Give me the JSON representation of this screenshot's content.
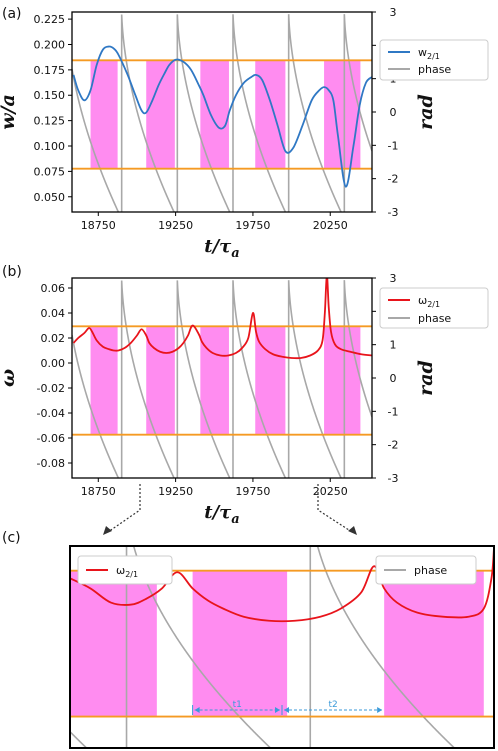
{
  "colors": {
    "w_line": "#2f78c4",
    "omega_line": "#e8141b",
    "phase_line": "#a8a8a8",
    "threshold": "#f59a23",
    "band": "#ff8cf0",
    "arrow_dotted": "#333333",
    "interval_arrow": "#3a9ad9"
  },
  "chart_data": [
    {
      "panel": "(a)",
      "type": "line",
      "xlabel": "t/τa",
      "xlabel_main": "t/τ",
      "xlabel_sub": "a",
      "ylabel": "w/a",
      "y2label": "rad",
      "xlim": [
        18580,
        20520
      ],
      "ylim": [
        0.035,
        0.232
      ],
      "y2lim": [
        -3,
        3
      ],
      "xticks": [
        "18750",
        "19250",
        "19750",
        "20250"
      ],
      "xtick_values": [
        18750,
        19250,
        19750,
        20250
      ],
      "yticks": [
        "0.050",
        "0.075",
        "0.100",
        "0.125",
        "0.150",
        "0.175",
        "0.200",
        "0.225"
      ],
      "ytick_values": [
        0.05,
        0.075,
        0.1,
        0.125,
        0.15,
        0.175,
        0.2,
        0.225
      ],
      "y2ticks": [
        "-3",
        "-2",
        "-1",
        "0",
        "1",
        "2",
        "3"
      ],
      "y2tick_values": [
        -3,
        -2,
        -1,
        0,
        1,
        2,
        3
      ],
      "thresholds_rad": [
        1.55,
        -1.7
      ],
      "bands": [
        [
          18700,
          18875
        ],
        [
          19060,
          19245
        ],
        [
          19410,
          19595
        ],
        [
          19765,
          19960
        ],
        [
          20210,
          20445
        ]
      ],
      "legend": [
        {
          "label": "w",
          "sub": "2/1",
          "color_key": "w_line"
        },
        {
          "label": "phase",
          "sub": "",
          "color_key": "phase_line"
        }
      ],
      "series": [
        {
          "name": "w2/1",
          "axis": "left",
          "x": [
            18590,
            18620,
            18660,
            18700,
            18740,
            18780,
            18820,
            18850,
            18880,
            18940,
            18990,
            19030,
            19060,
            19100,
            19140,
            19180,
            19210,
            19250,
            19300,
            19350,
            19400,
            19430,
            19480,
            19530,
            19570,
            19600,
            19640,
            19690,
            19740,
            19770,
            19810,
            19860,
            19910,
            19960,
            20010,
            20070,
            20130,
            20180,
            20210,
            20240,
            20270,
            20300,
            20350,
            20400,
            20440,
            20480,
            20520
          ],
          "y": [
            0.17,
            0.155,
            0.145,
            0.155,
            0.18,
            0.195,
            0.198,
            0.196,
            0.19,
            0.17,
            0.15,
            0.135,
            0.133,
            0.145,
            0.16,
            0.172,
            0.18,
            0.185,
            0.183,
            0.175,
            0.16,
            0.15,
            0.13,
            0.118,
            0.12,
            0.135,
            0.15,
            0.162,
            0.168,
            0.17,
            0.165,
            0.145,
            0.12,
            0.095,
            0.098,
            0.12,
            0.145,
            0.155,
            0.158,
            0.155,
            0.145,
            0.11,
            0.06,
            0.1,
            0.14,
            0.162,
            0.168
          ]
        }
      ]
    },
    {
      "panel": "(b)",
      "type": "line",
      "xlabel": "t/τa",
      "xlabel_main": "t/τ",
      "xlabel_sub": "a",
      "ylabel": "ω",
      "y2label": "rad",
      "xlim": [
        18580,
        20520
      ],
      "ylim": [
        -0.092,
        0.068
      ],
      "y2lim": [
        -3,
        3
      ],
      "xticks": [
        "18750",
        "19250",
        "19750",
        "20250"
      ],
      "xtick_values": [
        18750,
        19250,
        19750,
        20250
      ],
      "yticks": [
        "-0.08",
        "-0.06",
        "-0.04",
        "-0.02",
        "0.00",
        "0.02",
        "0.04",
        "0.06"
      ],
      "ytick_values": [
        -0.08,
        -0.06,
        -0.04,
        -0.02,
        0.0,
        0.02,
        0.04,
        0.06
      ],
      "y2ticks": [
        "-3",
        "-2",
        "-1",
        "0",
        "1",
        "2",
        "3"
      ],
      "y2tick_values": [
        -3,
        -2,
        -1,
        0,
        1,
        2,
        3
      ],
      "thresholds_rad": [
        1.55,
        -1.7
      ],
      "bands": [
        [
          18700,
          18875
        ],
        [
          19060,
          19245
        ],
        [
          19410,
          19595
        ],
        [
          19765,
          19960
        ],
        [
          20210,
          20445
        ]
      ],
      "legend": [
        {
          "label": "ω",
          "sub": "2/1",
          "color_key": "omega_line"
        },
        {
          "label": "phase",
          "sub": "",
          "color_key": "phase_line"
        }
      ],
      "series": [
        {
          "name": "ω2/1",
          "axis": "left",
          "x": [
            18590,
            18620,
            18660,
            18690,
            18710,
            18740,
            18780,
            18820,
            18850,
            18880,
            18920,
            18960,
            19000,
            19030,
            19060,
            19080,
            19110,
            19150,
            19190,
            19230,
            19270,
            19300,
            19330,
            19360,
            19400,
            19420,
            19450,
            19490,
            19540,
            19590,
            19640,
            19680,
            19720,
            19750,
            19770,
            19790,
            19830,
            19880,
            19940,
            20000,
            20060,
            20120,
            20170,
            20200,
            20215,
            20228,
            20240,
            20255,
            20280,
            20320,
            20380,
            20450,
            20520
          ],
          "y": [
            0.016,
            0.02,
            0.024,
            0.028,
            0.025,
            0.018,
            0.013,
            0.011,
            0.01,
            0.01,
            0.012,
            0.016,
            0.022,
            0.027,
            0.022,
            0.016,
            0.012,
            0.009,
            0.008,
            0.009,
            0.012,
            0.016,
            0.022,
            0.03,
            0.023,
            0.017,
            0.012,
            0.008,
            0.006,
            0.006,
            0.008,
            0.012,
            0.02,
            0.04,
            0.025,
            0.017,
            0.011,
            0.007,
            0.005,
            0.004,
            0.004,
            0.006,
            0.01,
            0.018,
            0.04,
            0.07,
            0.045,
            0.025,
            0.015,
            0.011,
            0.009,
            0.007,
            0.006
          ]
        }
      ]
    },
    {
      "panel": "(c)",
      "type": "line",
      "xlim": [
        19150,
        19980
      ],
      "ylim": [
        -0.059,
        0.041
      ],
      "y2lim": [
        -2.4,
        2.1
      ],
      "thresholds_rad": [
        1.55,
        -1.7
      ],
      "bands": [
        [
          19150,
          19320
        ],
        [
          19390,
          19575
        ],
        [
          19765,
          19960
        ]
      ],
      "annotations": [
        {
          "label": "t1",
          "x_from": 19390,
          "x_to": 19565
        },
        {
          "label": "t2",
          "x_from": 19565,
          "x_to": 19765
        }
      ],
      "legend": [
        {
          "label": "ω",
          "sub": "2/1",
          "color_key": "omega_line"
        },
        {
          "label": "phase",
          "sub": "",
          "color_key": "phase_line"
        }
      ],
      "series": [
        {
          "name": "ω2/1",
          "axis": "left",
          "x": [
            19150,
            19190,
            19230,
            19270,
            19300,
            19330,
            19360,
            19390,
            19420,
            19450,
            19490,
            19540,
            19590,
            19640,
            19680,
            19720,
            19745,
            19765,
            19790,
            19830,
            19880,
            19930,
            19960,
            19975,
            19980
          ],
          "y": [
            0.025,
            0.02,
            0.013,
            0.012,
            0.015,
            0.02,
            0.028,
            0.02,
            0.014,
            0.01,
            0.006,
            0.004,
            0.004,
            0.006,
            0.01,
            0.018,
            0.031,
            0.02,
            0.013,
            0.008,
            0.006,
            0.006,
            0.01,
            0.025,
            0.04
          ]
        }
      ]
    }
  ]
}
